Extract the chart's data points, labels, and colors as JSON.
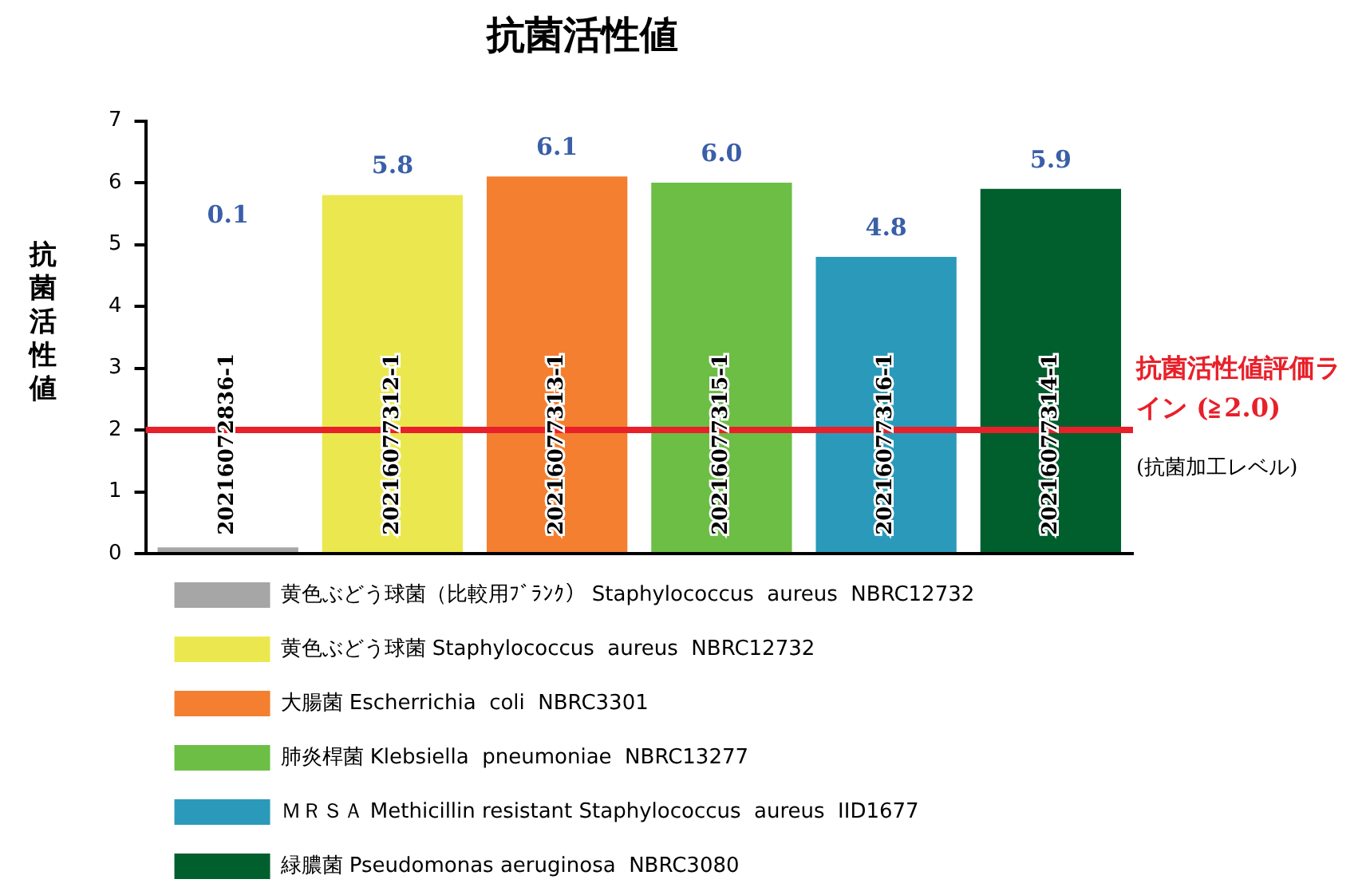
{
  "chart_data": {
    "type": "bar",
    "title": "抗菌活性値",
    "ylabel": "抗菌活性値",
    "categories": [
      null,
      null,
      null,
      null,
      null,
      null
    ],
    "series": [
      {
        "name": "黄色ぶどう球菌（比較用ﾌﾞﾗﾝｸ）\tStaphylococcus  aureus  NBRC12732",
        "color": "#a6a6a6",
        "values": [
          0.1,
          null,
          null,
          null,
          null,
          null
        ]
      },
      {
        "name": "黄色ぶどう球菌\tStaphylococcus  aureus  NBRC12732",
        "color": "#ebe84f",
        "values": [
          null,
          5.8,
          null,
          null,
          null,
          null
        ]
      },
      {
        "name": "大腸菌\tEscherrichia  coli  NBRC3301",
        "color": "#f47f30",
        "values": [
          null,
          null,
          6.1,
          null,
          null,
          null
        ]
      },
      {
        "name": "肺炎桿菌\tKlebsiella  pneumoniae  NBRC13277",
        "color": "#6dbe45",
        "values": [
          null,
          null,
          null,
          6.0,
          null,
          null
        ]
      },
      {
        "name": "ＭＲＳＡ\tMethicillin resistant Staphylococcus  aureus  IID1677",
        "color": "#2b9aba",
        "values": [
          null,
          null,
          null,
          null,
          4.8,
          null
        ]
      },
      {
        "name": "緑膿菌\tPseudomonas aeruginosa  NBRC3080",
        "color": "#015f2e",
        "values": [
          null,
          null,
          null,
          null,
          null,
          5.9
        ]
      }
    ],
    "stacked": true,
    "ylim": [
      0,
      7
    ],
    "yticks": [
      0,
      1,
      2,
      3,
      4,
      5,
      6,
      7
    ],
    "grid": false,
    "legend": "bottom",
    "tick_labels": "y",
    "value_labels": [
      "0.1",
      "5.8",
      "6.1",
      "6.0",
      "4.8",
      "5.9"
    ],
    "ref_lines": [
      {
        "axis": "y",
        "value": 2,
        "label": "抗菌活性値評価ライン (≧2.0)",
        "color": "#e8202a"
      }
    ],
    "annotations": [
      "20216072836-1",
      "20216077312-1",
      "20216077313-1",
      "20216077315-1",
      "20216077316-1",
      "20216077314-1",
      "(抗菌加工レベル)"
    ]
  }
}
